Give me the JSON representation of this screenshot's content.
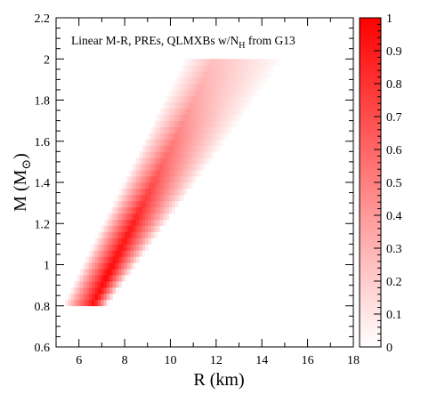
{
  "chart_data": {
    "type": "heatmap",
    "annotation": {
      "text": "Linear M-R, PREs, QLMXBs w/N",
      "subscript": "H",
      "suffix": " from G13"
    },
    "xlabel": "R (km)",
    "ylabel": {
      "main": "M (M",
      "symbol": "⊙",
      "close": ")"
    },
    "xlim": [
      5,
      18
    ],
    "ylim": [
      0.6,
      2.2
    ],
    "xticks": [
      6,
      8,
      10,
      12,
      14,
      16,
      18
    ],
    "xtick_labels": [
      "6",
      "8",
      "10",
      "12",
      "14",
      "16",
      "18"
    ],
    "yticks": [
      0.6,
      0.8,
      1.0,
      1.2,
      1.4,
      1.6,
      1.8,
      2.0,
      2.2
    ],
    "ytick_labels": [
      "0.6",
      "0.8",
      "1",
      "1.2",
      "1.4",
      "1.6",
      "1.8",
      "2",
      "2.2"
    ],
    "colorbar": {
      "range": [
        0,
        1
      ],
      "ticks": [
        0,
        0.1,
        0.2,
        0.3,
        0.4,
        0.5,
        0.6,
        0.7,
        0.8,
        0.9,
        1
      ],
      "tick_labels": [
        "0",
        "0.1",
        "0.2",
        "0.3",
        "0.4",
        "0.5",
        "0.6",
        "0.7",
        "0.8",
        "0.9",
        "1"
      ],
      "color_low": "#ffffff",
      "color_high": "#ff0000"
    },
    "band": {
      "mass_range": [
        0.8,
        2.0
      ],
      "radius_at_min_mass": [
        5.3,
        7.2
      ],
      "radius_at_max_mass": [
        10.6,
        15.0
      ],
      "peak_radius_at_min_mass": 6.6,
      "peak_radius_at_max_mass": 11.9,
      "peak_value_profile": [
        {
          "M": 0.8,
          "peak": 0.95
        },
        {
          "M": 0.95,
          "peak": 1.0
        },
        {
          "M": 1.2,
          "peak": 0.9
        },
        {
          "M": 1.5,
          "peak": 0.6
        },
        {
          "M": 1.8,
          "peak": 0.35
        },
        {
          "M": 2.0,
          "peak": 0.25
        }
      ]
    }
  }
}
